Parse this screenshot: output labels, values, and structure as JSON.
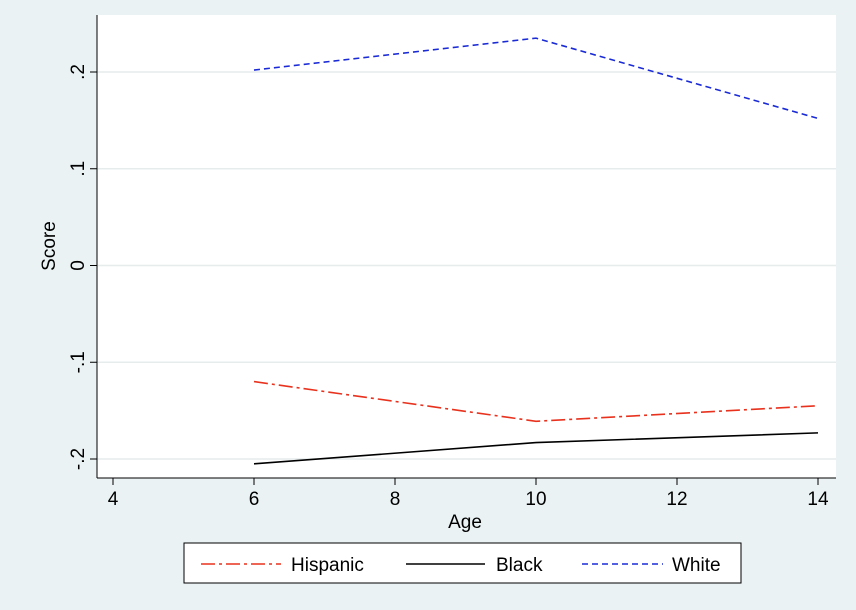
{
  "chart_data": {
    "type": "line",
    "title": "",
    "xlabel": "Age",
    "ylabel": "Score",
    "x": [
      6,
      10,
      14
    ],
    "xlim": [
      4,
      14
    ],
    "ylim": [
      -0.2,
      0.2
    ],
    "xticks": [
      4,
      6,
      8,
      10,
      12,
      14
    ],
    "xtick_labels": [
      "4",
      "6",
      "8",
      "10",
      "12",
      "14"
    ],
    "yticks": [
      -0.2,
      -0.1,
      0,
      0.1,
      0.2
    ],
    "ytick_labels": [
      "-.2",
      "-.1",
      "0",
      ".1",
      ".2"
    ],
    "grid": true,
    "legend_position": "bottom",
    "series": [
      {
        "name": "Hispanic",
        "values": [
          -0.12,
          -0.161,
          -0.145
        ],
        "color": "#e8321e",
        "style": "dash-dot"
      },
      {
        "name": "Black",
        "values": [
          -0.205,
          -0.183,
          -0.173
        ],
        "color": "#000000",
        "style": "solid"
      },
      {
        "name": "White",
        "values": [
          0.202,
          0.235,
          0.152
        ],
        "color": "#1a2bd6",
        "style": "dashed"
      }
    ]
  }
}
